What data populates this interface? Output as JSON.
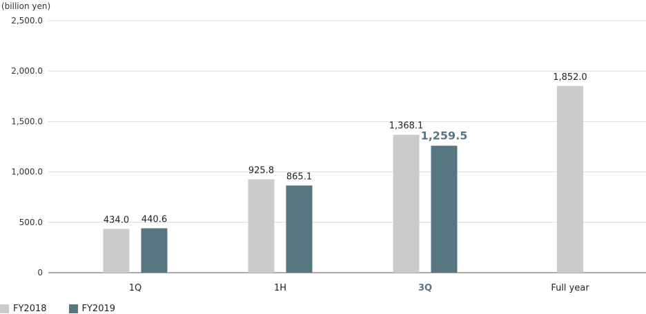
{
  "chart_data": {
    "type": "bar",
    "unit_label": "(billion yen)",
    "categories": [
      "1Q",
      "1H",
      "3Q",
      "Full year"
    ],
    "highlight_category": "3Q",
    "y_ticks": [
      "0",
      "500.0",
      "1,000.0",
      "1,500.0",
      "2,000.0",
      "2,500.0"
    ],
    "ylim": [
      0,
      2500
    ],
    "grid": true,
    "legend_position": "bottom-left",
    "series": [
      {
        "name": "FY2018",
        "color": "#cbcbcb",
        "values": [
          434.0,
          925.8,
          1368.1,
          1852.0
        ],
        "labels": [
          "434.0",
          "925.8",
          "1,368.1",
          "1,852.0"
        ]
      },
      {
        "name": "FY2019",
        "color": "#587582",
        "values": [
          440.6,
          865.1,
          1259.5,
          null
        ],
        "labels": [
          "440.6",
          "865.1",
          "1,259.5",
          null
        ]
      }
    ],
    "highlight_color": "#587582"
  }
}
